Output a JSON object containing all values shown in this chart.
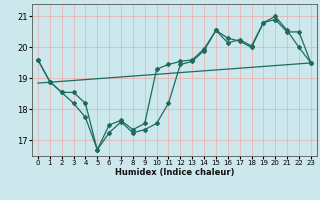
{
  "xlabel": "Humidex (Indice chaleur)",
  "bg_color": "#cce8ed",
  "grid_color": "#e8b4b4",
  "line_color": "#1e6b5e",
  "xlim": [
    -0.5,
    23.5
  ],
  "ylim": [
    16.5,
    21.4
  ],
  "yticks": [
    17,
    18,
    19,
    20,
    21
  ],
  "xticks": [
    0,
    1,
    2,
    3,
    4,
    5,
    6,
    7,
    8,
    9,
    10,
    11,
    12,
    13,
    14,
    15,
    16,
    17,
    18,
    19,
    20,
    21,
    22,
    23
  ],
  "line1_x": [
    0,
    1,
    2,
    3,
    4,
    5,
    6,
    7,
    8,
    9,
    10,
    11,
    12,
    13,
    14,
    15,
    16,
    17,
    18,
    19,
    20,
    21,
    22,
    23
  ],
  "line1_y": [
    19.6,
    18.9,
    18.55,
    18.2,
    17.75,
    16.7,
    17.25,
    17.6,
    17.25,
    17.35,
    17.55,
    18.2,
    19.45,
    19.55,
    19.9,
    20.55,
    20.3,
    20.2,
    20.0,
    20.8,
    21.0,
    20.55,
    20.0,
    19.5
  ],
  "line2_x": [
    0,
    1,
    2,
    3,
    4,
    5,
    6,
    7,
    8,
    9,
    10,
    11,
    12,
    13,
    14,
    15,
    16,
    17,
    18,
    19,
    20,
    21,
    22,
    23
  ],
  "line2_y": [
    19.6,
    18.9,
    18.55,
    18.55,
    18.2,
    16.7,
    17.5,
    17.65,
    17.35,
    17.55,
    19.3,
    19.45,
    19.55,
    19.6,
    19.95,
    20.55,
    20.15,
    20.25,
    20.05,
    20.8,
    20.9,
    20.5,
    20.5,
    19.5
  ],
  "line3_x": [
    0,
    23
  ],
  "line3_y": [
    18.85,
    19.5
  ]
}
